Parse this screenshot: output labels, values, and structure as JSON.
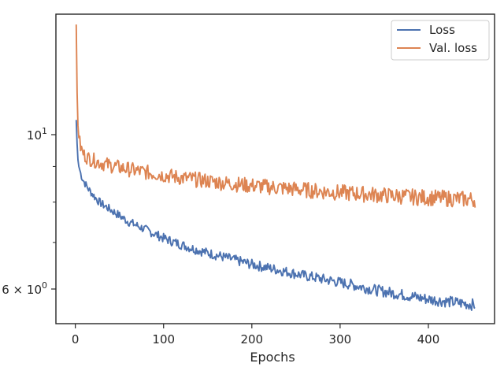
{
  "chart_data": {
    "type": "line",
    "title": "",
    "xlabel": "Epochs",
    "ylabel": "",
    "xlim": [
      -22,
      475
    ],
    "ylim": [
      5.35,
      14.9
    ],
    "yscale": "log",
    "grid": false,
    "legend_position": "top-right",
    "x_ticks": [
      {
        "value": 0,
        "label": "0"
      },
      {
        "value": 100,
        "label": "100"
      },
      {
        "value": 200,
        "label": "200"
      },
      {
        "value": 300,
        "label": "300"
      },
      {
        "value": 400,
        "label": "400"
      }
    ],
    "y_major_ticks": [
      {
        "value": 6,
        "label_base": "6 × 10",
        "label_exp": "0"
      },
      {
        "value": 10,
        "label_base": "10",
        "label_exp": "1"
      }
    ],
    "y_minor_ticks": [
      7,
      8,
      9
    ],
    "series": [
      {
        "name": "Loss",
        "color": "#4c72b0",
        "x": [
          1,
          2,
          3,
          4,
          6,
          8,
          10,
          15,
          20,
          25,
          30,
          40,
          50,
          60,
          70,
          80,
          90,
          100,
          110,
          120,
          130,
          140,
          150,
          160,
          170,
          180,
          190,
          200,
          210,
          220,
          230,
          240,
          250,
          260,
          270,
          280,
          290,
          300,
          310,
          320,
          330,
          340,
          350,
          360,
          370,
          380,
          390,
          400,
          410,
          420,
          430,
          440,
          450,
          453
        ],
        "y": [
          10.5,
          9.7,
          9.2,
          9.0,
          8.8,
          8.65,
          8.55,
          8.35,
          8.2,
          8.05,
          7.95,
          7.8,
          7.65,
          7.5,
          7.4,
          7.3,
          7.2,
          7.1,
          7.02,
          6.95,
          6.88,
          6.82,
          6.76,
          6.71,
          6.66,
          6.61,
          6.56,
          6.51,
          6.47,
          6.43,
          6.39,
          6.35,
          6.31,
          6.27,
          6.24,
          6.2,
          6.17,
          6.13,
          6.1,
          6.06,
          6.02,
          5.98,
          5.95,
          5.92,
          5.89,
          5.86,
          5.83,
          5.8,
          5.78,
          5.76,
          5.74,
          5.72,
          5.7,
          5.69
        ]
      },
      {
        "name": "Val. loss",
        "color": "#dd8452",
        "x": [
          1,
          2,
          3,
          4,
          6,
          8,
          10,
          15,
          20,
          25,
          30,
          40,
          50,
          60,
          70,
          80,
          90,
          100,
          110,
          120,
          130,
          140,
          150,
          160,
          170,
          180,
          190,
          200,
          210,
          220,
          230,
          240,
          250,
          260,
          270,
          280,
          290,
          300,
          310,
          320,
          330,
          340,
          350,
          360,
          370,
          380,
          390,
          400,
          410,
          420,
          430,
          440,
          450,
          453
        ],
        "y": [
          14.4,
          11.5,
          10.3,
          9.9,
          9.6,
          9.45,
          9.35,
          9.25,
          9.2,
          9.15,
          9.1,
          9.03,
          8.97,
          8.92,
          8.87,
          8.83,
          8.79,
          8.75,
          8.71,
          8.67,
          8.64,
          8.61,
          8.58,
          8.55,
          8.52,
          8.5,
          8.47,
          8.45,
          8.43,
          8.41,
          8.39,
          8.37,
          8.35,
          8.33,
          8.31,
          8.29,
          8.27,
          8.26,
          8.24,
          8.23,
          8.21,
          8.2,
          8.18,
          8.17,
          8.16,
          8.14,
          8.13,
          8.12,
          8.11,
          8.1,
          8.09,
          8.08,
          8.07,
          8.07
        ]
      }
    ]
  }
}
